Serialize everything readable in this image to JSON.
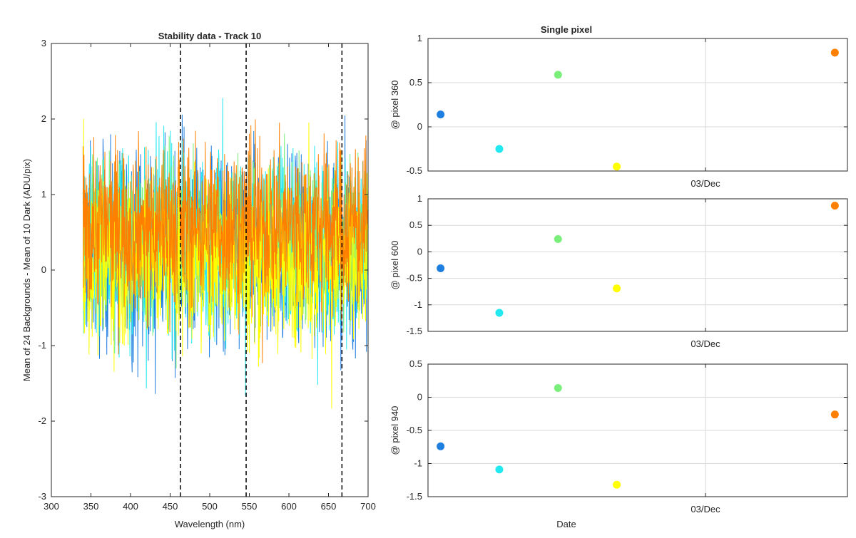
{
  "figure": {
    "background": "#ffffff"
  },
  "chart_data": [
    {
      "type": "line",
      "title": "Stability data - Track 10",
      "xlabel": "Wavelength (nm)",
      "ylabel": "Mean of 24 Backgrounds - Mean of 10 Dark (ADU/pix)",
      "xlim": [
        300,
        700
      ],
      "ylim": [
        -3,
        3
      ],
      "xticks": [
        300,
        350,
        400,
        450,
        500,
        550,
        600,
        650,
        700
      ],
      "yticks": [
        -3,
        -2,
        -1,
        0,
        1,
        2,
        3
      ],
      "grid": false,
      "data_x_range": [
        340,
        700
      ],
      "series": [
        {
          "color": "#1f7fe0",
          "center": 0.25,
          "spread": 0.65
        },
        {
          "color": "#22e8f0",
          "center": 0.35,
          "spread": 0.6
        },
        {
          "color": "#7af07a",
          "center": 0.45,
          "spread": 0.5
        },
        {
          "color": "#ffff00",
          "center": 0.1,
          "spread": 0.55
        },
        {
          "color": "#ff8000",
          "center": 0.6,
          "spread": 0.55
        }
      ],
      "vlines": [
        463,
        546,
        667
      ],
      "vline_style": "dashed",
      "vline_color": "#000000"
    },
    {
      "type": "scatter",
      "title": "Single pixel",
      "ylabel": "@ pixel 360",
      "xlabel": "",
      "ylim": [
        -0.5,
        1
      ],
      "yticks": [
        -0.5,
        0,
        0.5,
        1
      ],
      "yticklabels": [
        "-0.5",
        "0",
        "0.5",
        "1"
      ],
      "xtick_label": "03/Dec",
      "grid": true,
      "points": [
        {
          "x": 0.03,
          "y": 0.14,
          "color": "#1f7fe0"
        },
        {
          "x": 0.17,
          "y": -0.25,
          "color": "#22e8f0"
        },
        {
          "x": 0.31,
          "y": 0.59,
          "color": "#7af07a"
        },
        {
          "x": 0.45,
          "y": -0.45,
          "color": "#ffff00"
        },
        {
          "x": 0.97,
          "y": 0.84,
          "color": "#ff8000"
        }
      ]
    },
    {
      "type": "scatter",
      "title": "",
      "ylabel": "@ pixel 600",
      "xlabel": "",
      "ylim": [
        -1.5,
        1
      ],
      "yticks": [
        -1.5,
        -1,
        -0.5,
        0,
        0.5,
        1
      ],
      "yticklabels": [
        "-1.5",
        "-1",
        "-0.5",
        "0",
        "0.5",
        "1"
      ],
      "xtick_label": "03/Dec",
      "grid": true,
      "points": [
        {
          "x": 0.03,
          "y": -0.31,
          "color": "#1f7fe0"
        },
        {
          "x": 0.17,
          "y": -1.15,
          "color": "#22e8f0"
        },
        {
          "x": 0.31,
          "y": 0.24,
          "color": "#7af07a"
        },
        {
          "x": 0.45,
          "y": -0.69,
          "color": "#ffff00"
        },
        {
          "x": 0.97,
          "y": 0.87,
          "color": "#ff8000"
        }
      ]
    },
    {
      "type": "scatter",
      "title": "",
      "ylabel": "@ pixel 940",
      "xlabel": "Date",
      "ylim": [
        -1.5,
        0.5
      ],
      "yticks": [
        -1.5,
        -1,
        -0.5,
        0,
        0.5
      ],
      "yticklabels": [
        "-1.5",
        "-1",
        "-0.5",
        "0",
        "0.5"
      ],
      "xtick_label": "03/Dec",
      "grid": true,
      "points": [
        {
          "x": 0.03,
          "y": -0.74,
          "color": "#1f7fe0"
        },
        {
          "x": 0.17,
          "y": -1.09,
          "color": "#22e8f0"
        },
        {
          "x": 0.31,
          "y": 0.14,
          "color": "#7af07a"
        },
        {
          "x": 0.45,
          "y": -1.32,
          "color": "#ffff00"
        },
        {
          "x": 0.97,
          "y": -0.26,
          "color": "#ff8000"
        }
      ]
    }
  ]
}
